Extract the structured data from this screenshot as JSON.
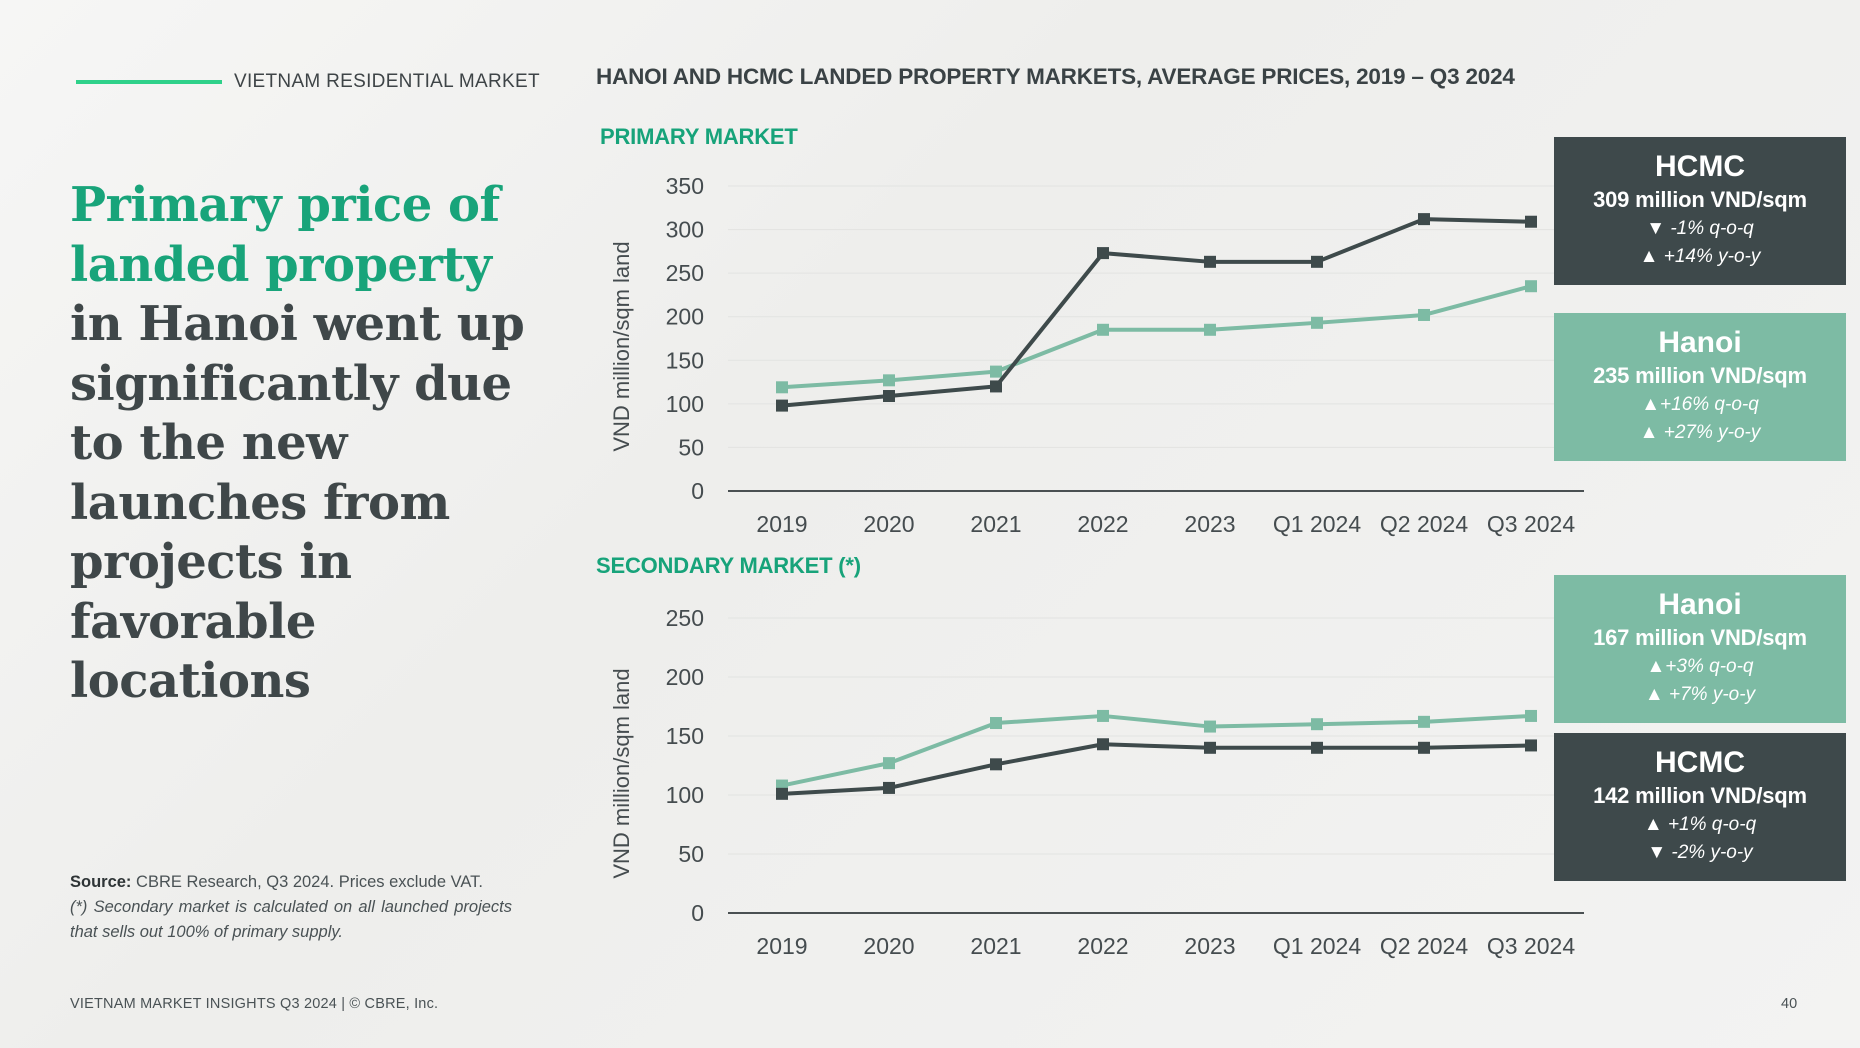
{
  "section_label": "VIETNAM RESIDENTIAL MARKET",
  "headline": {
    "accent": "Primary price of landed property",
    "rest": " in Hanoi went up significantly due to the new launches from projects in favorable locations"
  },
  "source": {
    "label": "Source:",
    "text": " CBRE Research, Q3 2024. Prices exclude VAT.",
    "note": "(*) Secondary market is calculated on all launched projects that sells out 100% of primary supply."
  },
  "footer": "VIETNAM MARKET INSIGHTS Q3 2024 | © CBRE, Inc.",
  "page_number": "40",
  "chart_title": "HANOI AND HCMC LANDED PROPERTY MARKETS, AVERAGE PRICES, 2019 – Q3 2024",
  "primary_title": "PRIMARY MARKET",
  "secondary_title": "SECONDARY MARKET (*)",
  "colors": {
    "hcmc": "#3e4a4b",
    "hanoi": "#7dbba4",
    "accent": "#18a47a",
    "rule": "#2fd18a"
  },
  "callouts": {
    "primary_hcmc": {
      "city": "HCMC",
      "price": "309 million VND/sqm",
      "qoq": "▼ -1% q-o-q",
      "yoy": "▲ +14% y-o-y"
    },
    "primary_hanoi": {
      "city": "Hanoi",
      "price": "235 million VND/sqm",
      "qoq": "▲+16% q-o-q",
      "yoy": "▲ +27% y-o-y"
    },
    "secondary_hanoi": {
      "city": "Hanoi",
      "price": "167 million VND/sqm",
      "qoq": "▲+3% q-o-q",
      "yoy": "▲ +7% y-o-y"
    },
    "secondary_hcmc": {
      "city": "HCMC",
      "price": "142 million VND/sqm",
      "qoq": "▲ +1% q-o-q",
      "yoy": "▼ -2% y-o-y"
    }
  },
  "chart_data": [
    {
      "type": "line",
      "title": "PRIMARY MARKET",
      "ylabel": "VND million/sqm land",
      "categories": [
        "2019",
        "2020",
        "2021",
        "2022",
        "2023",
        "Q1 2024",
        "Q2 2024",
        "Q3 2024"
      ],
      "ylim": [
        0,
        350
      ],
      "yticks": [
        "0",
        "50",
        "100",
        "150",
        "200",
        "250",
        "300",
        "350"
      ],
      "grid": true,
      "series": [
        {
          "name": "HCMC",
          "color": "#3e4a4b",
          "values": [
            98,
            109,
            120,
            273,
            263,
            263,
            312,
            309
          ]
        },
        {
          "name": "Hanoi",
          "color": "#7dbba4",
          "values": [
            119,
            127,
            137,
            185,
            185,
            193,
            202,
            235
          ]
        }
      ]
    },
    {
      "type": "line",
      "title": "SECONDARY MARKET (*)",
      "ylabel": "VND million/sqm land",
      "categories": [
        "2019",
        "2020",
        "2021",
        "2022",
        "2023",
        "Q1 2024",
        "Q2 2024",
        "Q3 2024"
      ],
      "ylim": [
        0,
        250
      ],
      "yticks": [
        "0",
        "50",
        "100",
        "150",
        "200",
        "250"
      ],
      "grid": true,
      "series": [
        {
          "name": "HCMC",
          "color": "#3e4a4b",
          "values": [
            101,
            106,
            126,
            143,
            140,
            140,
            140,
            142
          ]
        },
        {
          "name": "Hanoi",
          "color": "#7dbba4",
          "values": [
            108,
            127,
            161,
            167,
            158,
            160,
            162,
            167
          ]
        }
      ]
    }
  ]
}
